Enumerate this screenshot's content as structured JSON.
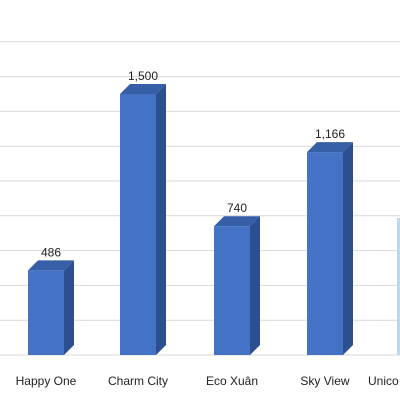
{
  "chart_data": {
    "type": "bar",
    "style": "3d-column",
    "categories": [
      "Happy One",
      "Charm City",
      "Eco Xuân",
      "Sky View",
      "Unico"
    ],
    "values": [
      486,
      1500,
      740,
      1166,
      null
    ],
    "data_labels": [
      "486",
      "1,500",
      "740",
      "1,166",
      ""
    ],
    "title": "",
    "xlabel": "",
    "ylabel": "",
    "ylim": [
      0,
      1800
    ],
    "grid": true,
    "legend": "none",
    "colors": {
      "bar_front": "#4472c4",
      "bar_side": "#2c4f8f",
      "bar_top": "#365fa8",
      "grid": "#d9d9d9",
      "partial_bar": "#bdd7ee"
    }
  }
}
